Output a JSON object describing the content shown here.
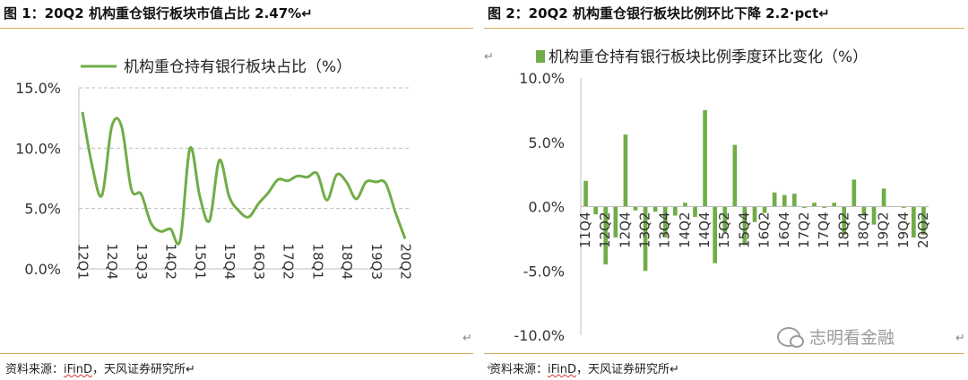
{
  "left": {
    "title": "图 1：20Q2 机构重仓银行板块市值占比 2.47%↵",
    "source_prefix": "资料来源：",
    "source_ifind": "iFinD",
    "source_suffix": "，天风证券研究所↵",
    "legend": "机构重仓持有银行板块占比（%）"
  },
  "right": {
    "title": "图 2：20Q2 机构重仓银行板块比例环比下降 2.2·pct↵",
    "source_prefix": "资料来源：",
    "source_ifind": "iFinD",
    "source_suffix": "，天风证券研究所↵",
    "legend": "机构重仓持有银行板块比例季度环比变化（%）"
  },
  "watermark": "志明看金融",
  "colors": {
    "series": "#70ad47",
    "rule": "#d8a95a",
    "grid": "#bfbfbf"
  },
  "chart_data": [
    {
      "type": "line",
      "title": "",
      "xlabel": "",
      "ylabel": "",
      "ylim": [
        0,
        15
      ],
      "yticks": [
        "0.0%",
        "5.0%",
        "10.0%",
        "15.0%"
      ],
      "x": [
        "12Q1",
        "12Q2",
        "12Q3",
        "12Q4",
        "13Q1",
        "13Q2",
        "13Q3",
        "13Q4",
        "14Q1",
        "14Q2",
        "14Q3",
        "14Q4",
        "15Q1",
        "15Q2",
        "15Q3",
        "15Q4",
        "16Q1",
        "16Q2",
        "16Q3",
        "16Q4",
        "17Q1",
        "17Q2",
        "17Q3",
        "17Q4",
        "18Q1",
        "18Q2",
        "18Q3",
        "18Q4",
        "19Q1",
        "19Q2",
        "19Q3",
        "19Q4",
        "20Q1",
        "20Q2"
      ],
      "x_tick_labels": [
        "12Q1",
        "12Q4",
        "13Q3",
        "14Q2",
        "15Q1",
        "15Q4",
        "16Q3",
        "17Q2",
        "18Q1",
        "18Q4",
        "19Q3",
        "20Q2"
      ],
      "series": [
        {
          "name": "机构重仓持有银行板块占比（%）",
          "values": [
            13.0,
            8.5,
            6.1,
            11.8,
            11.8,
            6.6,
            6.2,
            3.8,
            3.1,
            3.3,
            2.4,
            10.0,
            6.0,
            4.0,
            9.0,
            6.0,
            4.8,
            4.3,
            5.4,
            6.3,
            7.4,
            7.3,
            7.7,
            7.6,
            7.9,
            5.7,
            7.8,
            7.2,
            5.8,
            7.2,
            7.2,
            7.1,
            4.7,
            2.5
          ]
        }
      ],
      "grid": true,
      "legend_position": "top-left"
    },
    {
      "type": "bar",
      "title": "",
      "xlabel": "",
      "ylabel": "",
      "ylim": [
        -10,
        10
      ],
      "yticks": [
        "-10.0%",
        "-5.0%",
        "0.0%",
        "5.0%",
        "10.0%"
      ],
      "categories": [
        "11Q4",
        "12Q1",
        "12Q2",
        "12Q3",
        "12Q4",
        "13Q1",
        "13Q2",
        "13Q3",
        "13Q4",
        "14Q1",
        "14Q2",
        "14Q3",
        "14Q4",
        "15Q1",
        "15Q2",
        "15Q3",
        "15Q4",
        "16Q1",
        "16Q2",
        "16Q3",
        "16Q4",
        "17Q1",
        "17Q2",
        "17Q3",
        "17Q4",
        "18Q1",
        "18Q2",
        "18Q3",
        "18Q4",
        "19Q1",
        "19Q2",
        "19Q3",
        "19Q4",
        "20Q1",
        "20Q2"
      ],
      "x_tick_labels": [
        "11Q4",
        "12Q2",
        "12Q4",
        "13Q2",
        "13Q4",
        "14Q2",
        "14Q4",
        "15Q2",
        "15Q4",
        "16Q2",
        "16Q4",
        "17Q2",
        "17Q4",
        "18Q2",
        "18Q4",
        "19Q2",
        "19Q4",
        "20Q2"
      ],
      "series": [
        {
          "name": "机构重仓持有银行板块比例季度环比变化（%）",
          "values": [
            2.0,
            -0.6,
            -4.5,
            -2.4,
            5.6,
            -0.3,
            -5.0,
            -0.4,
            -2.4,
            -0.7,
            0.3,
            -0.8,
            7.5,
            -4.4,
            -2.0,
            4.8,
            -3.0,
            -1.2,
            -0.5,
            1.1,
            0.9,
            1.0,
            -0.1,
            0.3,
            -0.1,
            0.3,
            -2.2,
            2.1,
            -0.6,
            -1.4,
            1.4,
            0.0,
            -0.1,
            -2.4,
            -2.2
          ]
        }
      ],
      "grid": false,
      "legend_position": "top-left"
    }
  ]
}
